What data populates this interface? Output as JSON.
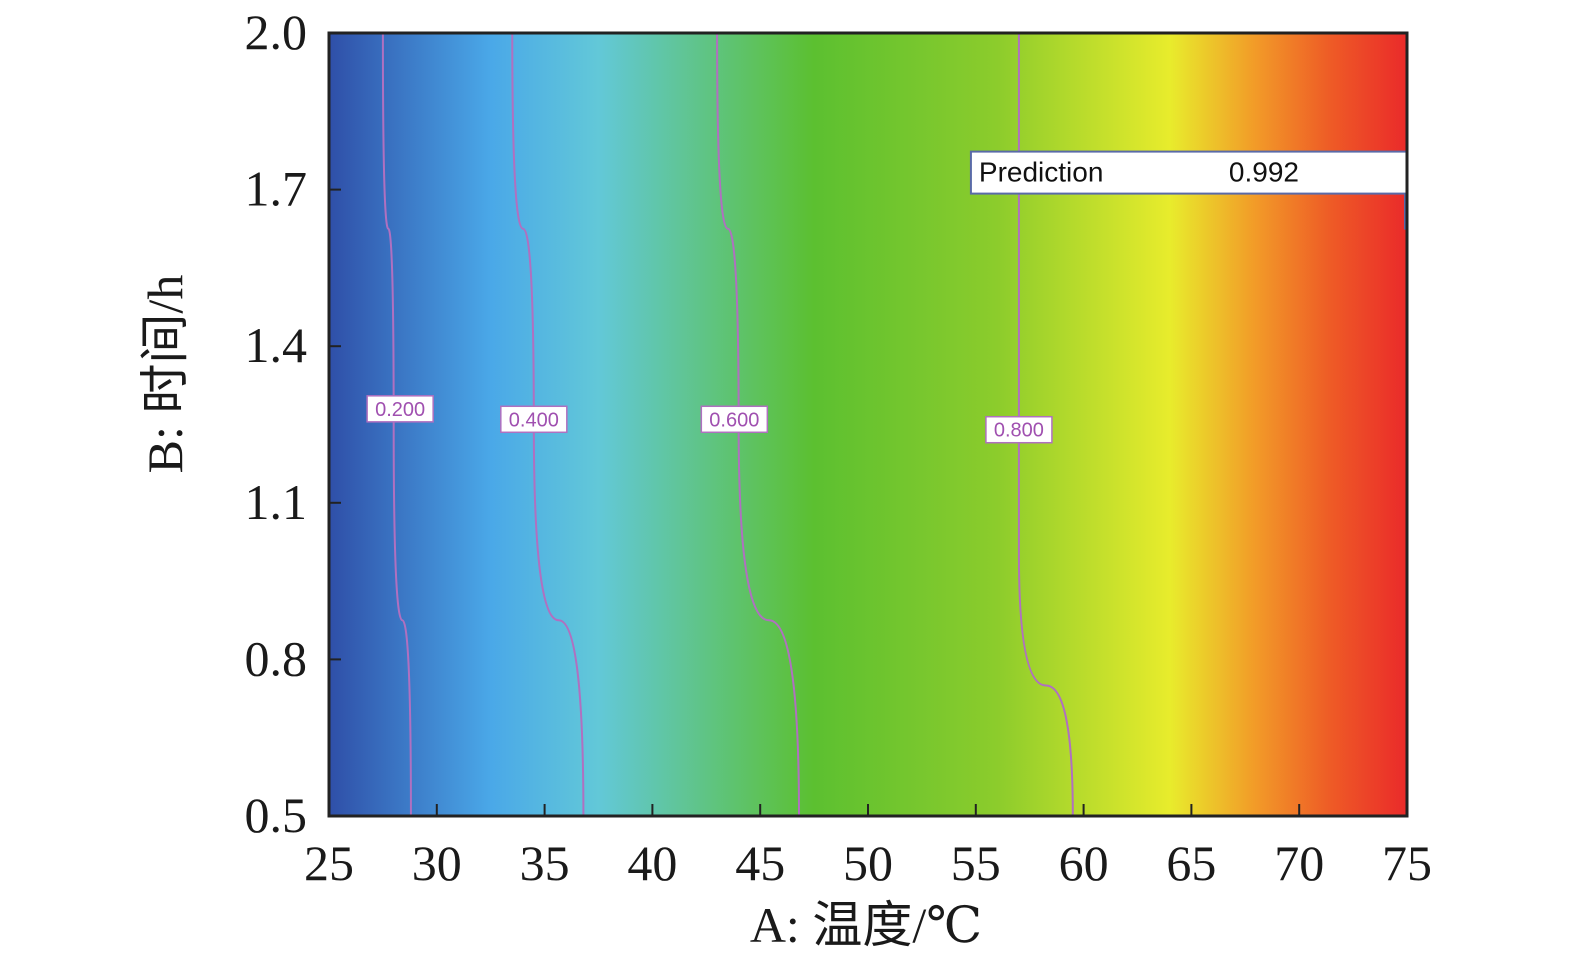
{
  "chart_data": {
    "type": "heatmap",
    "subtype": "contour",
    "title": "",
    "xlabel": "A: 温度/℃",
    "ylabel": "B: 时间/h",
    "xlim": [
      25,
      75
    ],
    "ylim": [
      0.5,
      2.0
    ],
    "x_ticks": [
      "25",
      "30",
      "35",
      "40",
      "45",
      "50",
      "55",
      "60",
      "65",
      "70",
      "75"
    ],
    "y_ticks": [
      "0.5",
      "0.8",
      "1.1",
      "1.4",
      "1.7",
      "2.0"
    ],
    "grid": false,
    "color_scale": [
      {
        "value": 0.0,
        "color": "#2f4fa8"
      },
      {
        "value": 0.15,
        "color": "#4aa8e8"
      },
      {
        "value": 0.25,
        "color": "#62c8d8"
      },
      {
        "value": 0.45,
        "color": "#5cc030"
      },
      {
        "value": 0.62,
        "color": "#8ccc2c"
      },
      {
        "value": 0.78,
        "color": "#e8ec2c"
      },
      {
        "value": 0.86,
        "color": "#f29a28"
      },
      {
        "value": 0.93,
        "color": "#ee5a26"
      },
      {
        "value": 1.0,
        "color": "#ea2a2a"
      }
    ],
    "contours": [
      {
        "level": "0.200",
        "points": [
          [
            27.5,
            2.0
          ],
          [
            28.0,
            1.25
          ],
          [
            28.8,
            0.5
          ]
        ],
        "label_at": [
          28.3,
          1.28
        ]
      },
      {
        "level": "0.400",
        "points": [
          [
            33.5,
            2.0
          ],
          [
            34.5,
            1.25
          ],
          [
            36.8,
            0.5
          ]
        ],
        "label_at": [
          34.5,
          1.26
        ]
      },
      {
        "level": "0.600",
        "points": [
          [
            43.0,
            2.0
          ],
          [
            44.0,
            1.25
          ],
          [
            46.8,
            0.5
          ]
        ],
        "label_at": [
          43.8,
          1.26
        ]
      },
      {
        "level": "0.800",
        "points": [
          [
            57.0,
            2.0
          ],
          [
            57.0,
            1.0
          ],
          [
            59.5,
            0.5
          ]
        ],
        "label_at": [
          57.0,
          1.24
        ]
      }
    ],
    "contour_color": "#b070c0",
    "annotation": {
      "label": "Prediction",
      "value": "0.992",
      "x": 57,
      "y": 1.7
    }
  }
}
